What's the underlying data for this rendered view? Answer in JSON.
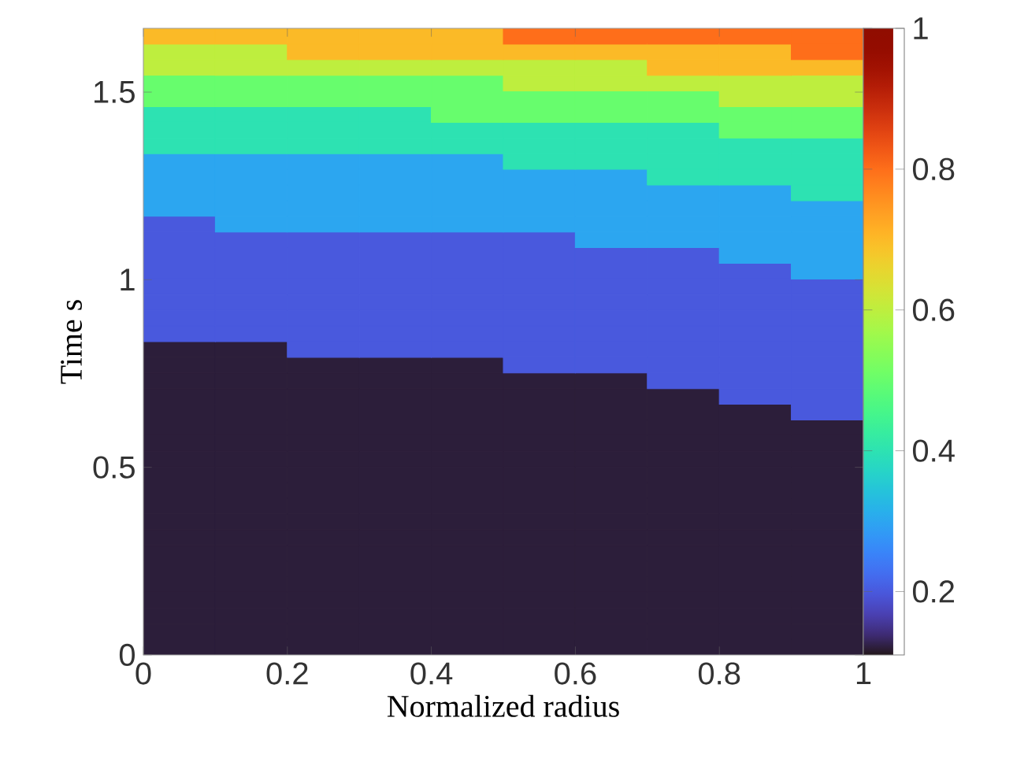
{
  "chart_data": {
    "type": "heatmap",
    "xlabel": "Normalized radius",
    "ylabel": "Time s",
    "xlim": [
      0,
      1
    ],
    "xticks": [
      0,
      0.2,
      0.4,
      0.6,
      0.8,
      1
    ],
    "ylim": [
      0,
      1.67
    ],
    "yticks": [
      0,
      0.5,
      1,
      1.5
    ],
    "clim": [
      0.11,
      1
    ],
    "cticks": [
      0.2,
      0.4,
      0.6,
      0.8,
      1
    ],
    "cells": [
      [
        0.7,
        0.7,
        0.7,
        0.7,
        0.7,
        0.8,
        0.8,
        0.8,
        0.8,
        0.8
      ],
      [
        0.6,
        0.6,
        0.7,
        0.7,
        0.7,
        0.7,
        0.7,
        0.7,
        0.7,
        0.8
      ],
      [
        0.6,
        0.6,
        0.6,
        0.6,
        0.6,
        0.6,
        0.6,
        0.7,
        0.7,
        0.7
      ],
      [
        0.5,
        0.5,
        0.5,
        0.5,
        0.5,
        0.6,
        0.6,
        0.6,
        0.6,
        0.6
      ],
      [
        0.5,
        0.5,
        0.5,
        0.5,
        0.5,
        0.5,
        0.5,
        0.5,
        0.6,
        0.6
      ],
      [
        0.4,
        0.4,
        0.4,
        0.4,
        0.5,
        0.5,
        0.5,
        0.5,
        0.5,
        0.5
      ],
      [
        0.4,
        0.4,
        0.4,
        0.4,
        0.4,
        0.4,
        0.4,
        0.4,
        0.5,
        0.5
      ],
      [
        0.4,
        0.4,
        0.4,
        0.4,
        0.4,
        0.4,
        0.4,
        0.4,
        0.4,
        0.4
      ],
      [
        0.3,
        0.3,
        0.3,
        0.3,
        0.3,
        0.4,
        0.4,
        0.4,
        0.4,
        0.4
      ],
      [
        0.3,
        0.3,
        0.3,
        0.3,
        0.3,
        0.3,
        0.3,
        0.4,
        0.4,
        0.4
      ],
      [
        0.3,
        0.3,
        0.3,
        0.3,
        0.3,
        0.3,
        0.3,
        0.3,
        0.3,
        0.4
      ],
      [
        0.3,
        0.3,
        0.3,
        0.3,
        0.3,
        0.3,
        0.3,
        0.3,
        0.3,
        0.3
      ],
      [
        0.2,
        0.3,
        0.3,
        0.3,
        0.3,
        0.3,
        0.3,
        0.3,
        0.3,
        0.3
      ],
      [
        0.2,
        0.2,
        0.2,
        0.2,
        0.2,
        0.2,
        0.3,
        0.3,
        0.3,
        0.3
      ],
      [
        0.2,
        0.2,
        0.2,
        0.2,
        0.2,
        0.2,
        0.2,
        0.2,
        0.3,
        0.3
      ],
      [
        0.2,
        0.2,
        0.2,
        0.2,
        0.2,
        0.2,
        0.2,
        0.2,
        0.2,
        0.3
      ],
      [
        0.2,
        0.2,
        0.2,
        0.2,
        0.2,
        0.2,
        0.2,
        0.2,
        0.2,
        0.2
      ],
      [
        0.2,
        0.2,
        0.2,
        0.2,
        0.2,
        0.2,
        0.2,
        0.2,
        0.2,
        0.2
      ],
      [
        0.2,
        0.2,
        0.2,
        0.2,
        0.2,
        0.2,
        0.2,
        0.2,
        0.2,
        0.2
      ],
      [
        0.2,
        0.2,
        0.2,
        0.2,
        0.2,
        0.2,
        0.2,
        0.2,
        0.2,
        0.2
      ],
      [
        0.12,
        0.12,
        0.2,
        0.2,
        0.2,
        0.2,
        0.2,
        0.2,
        0.2,
        0.2
      ],
      [
        0.12,
        0.12,
        0.12,
        0.12,
        0.12,
        0.2,
        0.2,
        0.2,
        0.2,
        0.2
      ],
      [
        0.12,
        0.12,
        0.12,
        0.12,
        0.12,
        0.12,
        0.12,
        0.2,
        0.2,
        0.2
      ],
      [
        0.12,
        0.12,
        0.12,
        0.12,
        0.12,
        0.12,
        0.12,
        0.12,
        0.2,
        0.2
      ],
      [
        0.12,
        0.12,
        0.12,
        0.12,
        0.12,
        0.12,
        0.12,
        0.12,
        0.12,
        0.2
      ],
      [
        0.12,
        0.12,
        0.12,
        0.12,
        0.12,
        0.12,
        0.12,
        0.12,
        0.12,
        0.12
      ],
      [
        0.12,
        0.12,
        0.12,
        0.12,
        0.12,
        0.12,
        0.12,
        0.12,
        0.12,
        0.12
      ],
      [
        0.12,
        0.12,
        0.12,
        0.12,
        0.12,
        0.12,
        0.12,
        0.12,
        0.12,
        0.12
      ],
      [
        0.12,
        0.12,
        0.12,
        0.12,
        0.12,
        0.12,
        0.12,
        0.12,
        0.12,
        0.12
      ],
      [
        0.12,
        0.12,
        0.12,
        0.12,
        0.12,
        0.12,
        0.12,
        0.12,
        0.12,
        0.12
      ],
      [
        0.12,
        0.12,
        0.12,
        0.12,
        0.12,
        0.12,
        0.12,
        0.12,
        0.12,
        0.12
      ],
      [
        0.12,
        0.12,
        0.12,
        0.12,
        0.12,
        0.12,
        0.12,
        0.12,
        0.12,
        0.12
      ],
      [
        0.12,
        0.12,
        0.12,
        0.12,
        0.12,
        0.12,
        0.12,
        0.12,
        0.12,
        0.12
      ],
      [
        0.12,
        0.12,
        0.12,
        0.12,
        0.12,
        0.12,
        0.12,
        0.12,
        0.12,
        0.12
      ],
      [
        0.12,
        0.12,
        0.12,
        0.12,
        0.12,
        0.12,
        0.12,
        0.12,
        0.12,
        0.12
      ],
      [
        0.12,
        0.12,
        0.12,
        0.12,
        0.12,
        0.12,
        0.12,
        0.12,
        0.12,
        0.12
      ],
      [
        0.12,
        0.12,
        0.12,
        0.12,
        0.12,
        0.12,
        0.12,
        0.12,
        0.12,
        0.12
      ],
      [
        0.12,
        0.12,
        0.12,
        0.12,
        0.12,
        0.12,
        0.12,
        0.12,
        0.12,
        0.12
      ],
      [
        0.12,
        0.12,
        0.12,
        0.12,
        0.12,
        0.12,
        0.12,
        0.12,
        0.12,
        0.12
      ],
      [
        0.12,
        0.12,
        0.12,
        0.12,
        0.12,
        0.12,
        0.12,
        0.12,
        0.12,
        0.12
      ]
    ]
  }
}
